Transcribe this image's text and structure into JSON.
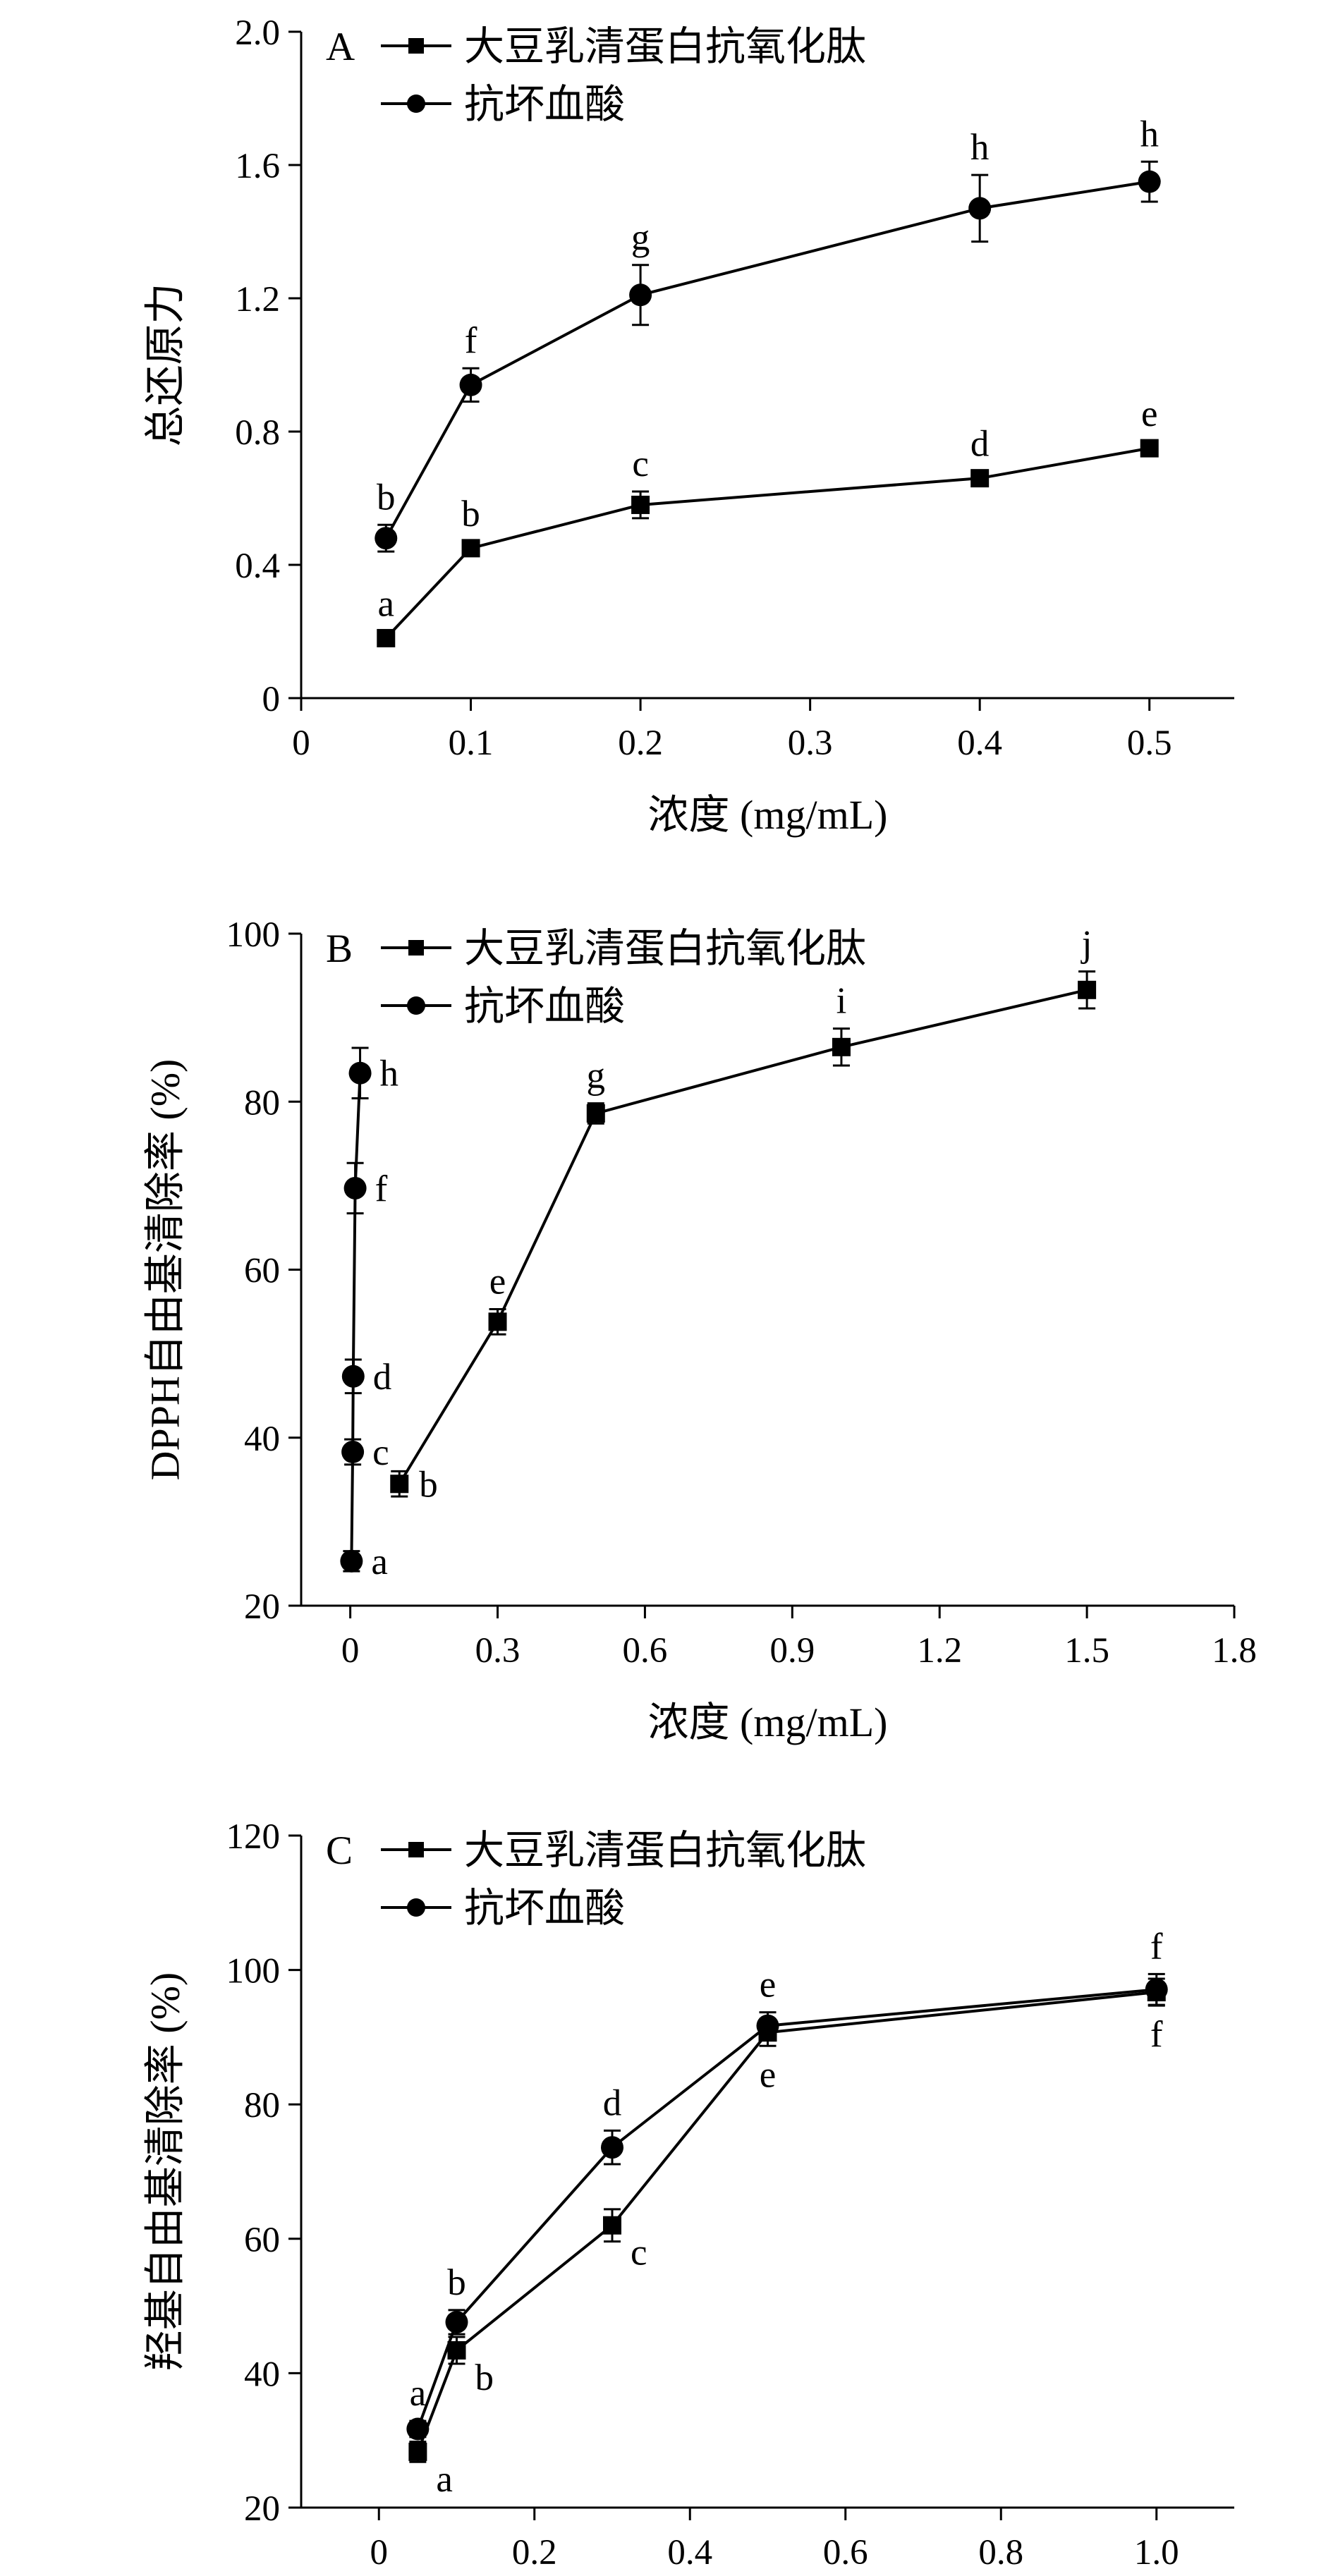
{
  "chart_data": [
    {
      "type": "line",
      "panel": "A",
      "xlabel": "浓度 (mg/mL)",
      "ylabel": "总还原力",
      "xlim": [
        0,
        0.55
      ],
      "ylim": [
        0,
        2.0
      ],
      "xticks": [
        "0",
        "0.1",
        "0.2",
        "0.3",
        "0.4",
        "0.5"
      ],
      "yticks": [
        "0",
        "0.4",
        "0.8",
        "1.2",
        "1.6",
        "2.0"
      ],
      "legend_position": "top-left",
      "series": [
        {
          "name": "大豆乳清蛋白抗氧化肽",
          "marker": "square",
          "x": [
            0.05,
            0.1,
            0.2,
            0.4,
            0.5
          ],
          "y": [
            0.18,
            0.45,
            0.58,
            0.66,
            0.75
          ],
          "err": [
            0.02,
            0.02,
            0.04,
            0.02,
            0.02
          ],
          "labels": [
            "a",
            "b",
            "c",
            "d",
            "e"
          ],
          "label_side": [
            "above",
            "above",
            "above",
            "above",
            "above"
          ]
        },
        {
          "name": "抗坏血酸",
          "marker": "circle",
          "x": [
            0.05,
            0.1,
            0.2,
            0.4,
            0.5
          ],
          "y": [
            0.48,
            0.94,
            1.21,
            1.47,
            1.55
          ],
          "err": [
            0.04,
            0.05,
            0.09,
            0.1,
            0.06
          ],
          "labels": [
            "b",
            "f",
            "g",
            "h",
            "h"
          ],
          "label_side": [
            "above",
            "above",
            "above",
            "above",
            "above"
          ]
        }
      ]
    },
    {
      "type": "line",
      "panel": "B",
      "xlabel": "浓度 (mg/mL)",
      "ylabel": "DPPH自由基清除率 (%)",
      "xlim": [
        -0.1,
        1.8
      ],
      "ylim": [
        20,
        100
      ],
      "xticks": [
        "0",
        "0.3",
        "0.6",
        "0.9",
        "1.2",
        "1.5",
        "1.8"
      ],
      "yticks": [
        "20",
        "40",
        "60",
        "80",
        "100"
      ],
      "legend_position": "top-left",
      "series": [
        {
          "name": "大豆乳清蛋白抗氧化肽",
          "marker": "square",
          "x": [
            0.1,
            0.3,
            0.5,
            1.0,
            1.5
          ],
          "y": [
            34.5,
            53.8,
            78.6,
            86.5,
            93.3
          ],
          "err": [
            1.5,
            1.5,
            1.2,
            2.2,
            2.2
          ],
          "labels": [
            "b",
            "e",
            "g",
            "i",
            "j"
          ],
          "label_side": [
            "right",
            "above",
            "above",
            "above",
            "above"
          ]
        },
        {
          "name": "抗坏血酸",
          "marker": "circle",
          "x": [
            0.0025,
            0.005,
            0.006,
            0.01,
            0.02
          ],
          "y": [
            25.3,
            38.3,
            47.3,
            69.7,
            83.4
          ],
          "err": [
            1.2,
            1.5,
            2.0,
            3.0,
            3.0
          ],
          "labels": [
            "a",
            "c",
            "d",
            "f",
            "h"
          ],
          "label_side": [
            "right",
            "right",
            "right",
            "right",
            "right"
          ]
        }
      ]
    },
    {
      "type": "line",
      "panel": "C",
      "xlabel": "浓度 (mg/mL)",
      "ylabel": "羟基自由基清除率 (%)",
      "xlim": [
        -0.1,
        1.1
      ],
      "ylim": [
        20,
        120
      ],
      "xticks": [
        "0",
        "0.2",
        "0.4",
        "0.6",
        "0.8",
        "1.0"
      ],
      "yticks": [
        "20",
        "40",
        "60",
        "80",
        "100",
        "120"
      ],
      "legend_position": "top-left",
      "series": [
        {
          "name": "大豆乳清蛋白抗氧化肽",
          "marker": "square",
          "x": [
            0.05,
            0.1,
            0.3,
            0.5,
            1.0
          ],
          "y": [
            28.3,
            43.4,
            62.0,
            90.7,
            96.7
          ],
          "err": [
            1.5,
            2.0,
            2.4,
            2.0,
            2.0
          ],
          "labels": [
            "a",
            "b",
            "c",
            "e",
            "f"
          ],
          "label_side": [
            "below-right",
            "below-right",
            "below-right",
            "below",
            "below"
          ]
        },
        {
          "name": "抗坏血酸",
          "marker": "circle",
          "x": [
            0.05,
            0.1,
            0.3,
            0.5,
            1.0
          ],
          "y": [
            31.7,
            47.6,
            73.6,
            91.7,
            97.1
          ],
          "err": [
            1.2,
            1.8,
            2.5,
            2.0,
            2.3
          ],
          "labels": [
            "a",
            "b",
            "d",
            "e",
            "f"
          ],
          "label_side": [
            "above",
            "above",
            "above",
            "above",
            "above"
          ]
        }
      ]
    }
  ]
}
